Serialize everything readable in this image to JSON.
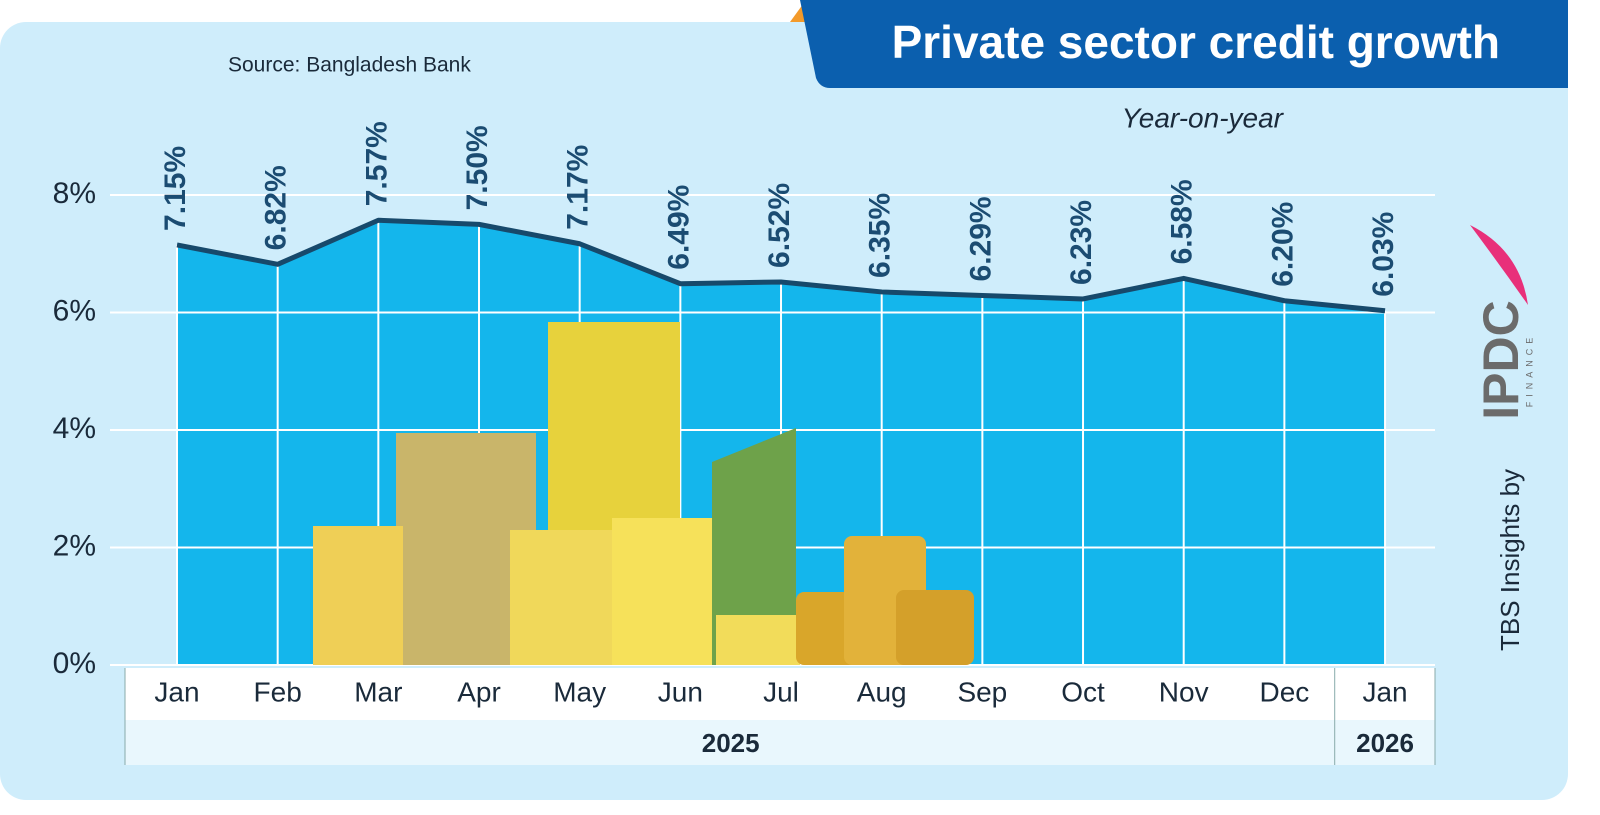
{
  "chart_data": {
    "type": "area-line",
    "title": "Private sector credit growth",
    "subtitle": "Year-on-year",
    "source": "Source: Bangladesh Bank",
    "credit": "TBS Insights by",
    "logo": {
      "name": "IPDC",
      "tagline": "FINANCE"
    },
    "categories": [
      "Jan",
      "Feb",
      "Mar",
      "Apr",
      "May",
      "Jun",
      "Jul",
      "Aug",
      "Sep",
      "Oct",
      "Nov",
      "Dec",
      "Jan"
    ],
    "year_groups": [
      {
        "label": "2025",
        "count": 12
      },
      {
        "label": "2026",
        "count": 1
      }
    ],
    "values": [
      7.15,
      6.82,
      7.57,
      7.5,
      7.17,
      6.49,
      6.52,
      6.35,
      6.29,
      6.23,
      6.58,
      6.2,
      6.03
    ],
    "value_labels": [
      "7.15%",
      "6.82%",
      "7.57%",
      "7.50%",
      "7.17%",
      "6.49%",
      "6.52%",
      "6.35%",
      "6.29%",
      "6.23%",
      "6.58%",
      "6.20%",
      "6.03%"
    ],
    "ylim": [
      0,
      8
    ],
    "yticks": [
      {
        "value": 0,
        "label": "0%"
      },
      {
        "value": 2,
        "label": "2%"
      },
      {
        "value": 4,
        "label": "4%"
      },
      {
        "value": 6,
        "label": "6%"
      },
      {
        "value": 8,
        "label": "8%"
      }
    ],
    "grid": true,
    "area_color": "#14b6ec",
    "line_color": "#17496b"
  }
}
